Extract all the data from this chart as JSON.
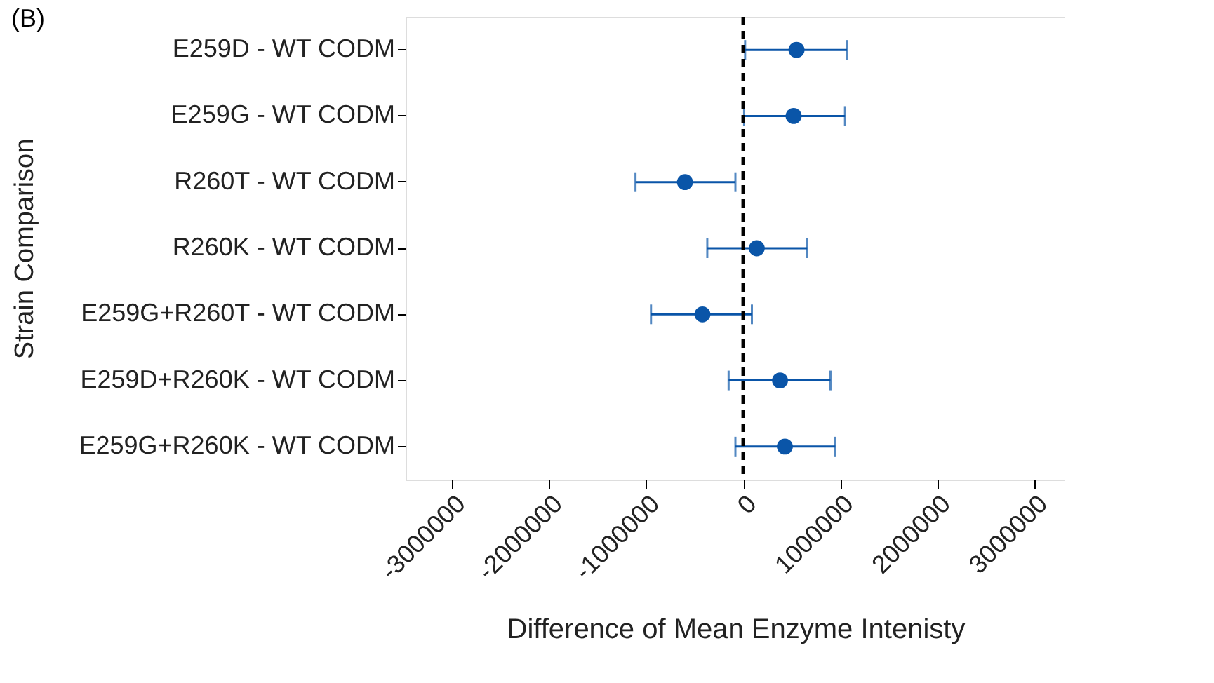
{
  "chart_data": {
    "type": "scatter",
    "title": "(B)",
    "xlabel": "Difference of Mean Enzyme Intenisty",
    "ylabel": "Strain Comparison",
    "orientation": "horizontal",
    "categories": [
      "E259D - WT CODM",
      "E259G - WT CODM",
      "R260T - WT CODM",
      "R260K - WT CODM",
      "E259G+R260T - WT CODM",
      "E259D+R260K - WT CODM",
      "E259G+R260K - WT CODM"
    ],
    "series": [
      {
        "color": "#0a55a8",
        "values": [
          550000,
          520000,
          -600000,
          140000,
          -420000,
          380000,
          430000
        ],
        "errors": [
          [
            20000,
            1070000
          ],
          [
            10000,
            1050000
          ],
          [
            -1110000,
            -80000
          ],
          [
            -370000,
            660000
          ],
          [
            -950000,
            90000
          ],
          [
            -150000,
            900000
          ],
          [
            -80000,
            950000
          ]
        ]
      }
    ],
    "xlim": [
      -3480000,
      3320000
    ],
    "xticks": [
      {
        "value": -3000000,
        "label": "-3000000"
      },
      {
        "value": -2000000,
        "label": "-2000000"
      },
      {
        "value": -1000000,
        "label": "-1000000"
      },
      0,
      {
        "value": 1000000,
        "label": "1000000"
      },
      {
        "value": 2000000,
        "label": "2000000"
      },
      {
        "value": 3000000,
        "label": "3000000"
      }
    ],
    "ref_lines": [
      {
        "axis": "x",
        "value": 0,
        "color": "#000000",
        "line_style": "dashed"
      }
    ],
    "marker": "circle",
    "grid": false,
    "legend": false
  }
}
